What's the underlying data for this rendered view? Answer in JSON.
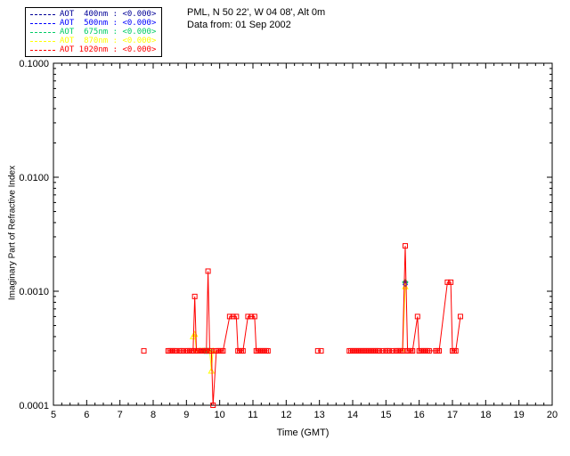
{
  "header": {
    "site_line": "PML, N 50 22', W 04 08', Alt 0m",
    "date_line": "Data from: 01 Sep 2002"
  },
  "legend": {
    "entries": [
      {
        "label": "AOT  400nm : <0.000>",
        "color": "#000096"
      },
      {
        "label": "AOT  500nm : <0.000>",
        "color": "#0000FF"
      },
      {
        "label": "AOT  675nm : <0.000>",
        "color": "#00CC66"
      },
      {
        "label": "AOT  870nm : <0.000>",
        "color": "#FFFF00"
      },
      {
        "label": "AOT 1020nm : <0.000>",
        "color": "#FF0000"
      }
    ]
  },
  "chart_data": {
    "type": "line",
    "title": "",
    "xlabel": "Time (GMT)",
    "ylabel": "Imaginary Part of Refractive Index",
    "xlim": [
      5,
      20
    ],
    "ylim": [
      0.0001,
      0.1
    ],
    "yscale": "log",
    "grid": false,
    "legend_position": "top-left",
    "xticks": [
      5,
      6,
      7,
      8,
      9,
      10,
      11,
      12,
      13,
      14,
      15,
      16,
      17,
      18,
      19,
      20
    ],
    "ytick_labels": [
      "0.0001",
      "0.0010",
      "0.0100",
      "0.1000"
    ],
    "gap_threshold": 0.5,
    "series": [
      {
        "name": "AOT 400nm",
        "color": "#000096",
        "marker": "plus",
        "points": [
          [
            9.5,
            0.0003
          ],
          [
            9.55,
            0.0003
          ],
          [
            15.58,
            0.0012
          ]
        ]
      },
      {
        "name": "AOT 500nm",
        "color": "#0000FF",
        "marker": "asterisk",
        "points": [
          [
            9.45,
            0.0003
          ],
          [
            9.5,
            0.0003
          ],
          [
            9.55,
            0.0003
          ],
          [
            15.58,
            0.00115
          ]
        ]
      },
      {
        "name": "AOT 675nm",
        "color": "#00CC66",
        "marker": "diamond",
        "points": [
          [
            9.55,
            0.0003
          ],
          [
            9.6,
            0.0003
          ],
          [
            9.65,
            0.0003
          ],
          [
            9.7,
            0.0003
          ],
          [
            15.58,
            0.0012
          ]
        ]
      },
      {
        "name": "AOT 870nm",
        "color": "#FFFF00",
        "marker": "triangle",
        "points": [
          [
            9.2,
            0.0004
          ],
          [
            9.25,
            0.00042
          ],
          [
            9.3,
            0.0003
          ],
          [
            9.4,
            0.0003
          ],
          [
            9.5,
            0.0003
          ],
          [
            9.6,
            0.0003
          ],
          [
            9.7,
            0.0003
          ],
          [
            9.75,
            0.0002
          ],
          [
            9.8,
            0.0003
          ],
          [
            15.5,
            0.0003
          ],
          [
            15.58,
            0.0011
          ]
        ]
      },
      {
        "name": "AOT 1020nm",
        "color": "#FF0000",
        "marker": "square",
        "points": [
          [
            7.72,
            0.0003
          ],
          [
            8.45,
            0.0003
          ],
          [
            8.5,
            0.0003
          ],
          [
            8.55,
            0.0003
          ],
          [
            8.6,
            0.0003
          ],
          [
            8.65,
            0.0003
          ],
          [
            8.7,
            0.0003
          ],
          [
            8.8,
            0.0003
          ],
          [
            8.85,
            0.0003
          ],
          [
            8.9,
            0.0003
          ],
          [
            9.0,
            0.0003
          ],
          [
            9.05,
            0.0003
          ],
          [
            9.1,
            0.0003
          ],
          [
            9.15,
            0.0003
          ],
          [
            9.2,
            0.0003
          ],
          [
            9.25,
            0.0009
          ],
          [
            9.3,
            0.0003
          ],
          [
            9.35,
            0.0003
          ],
          [
            9.4,
            0.0003
          ],
          [
            9.45,
            0.0003
          ],
          [
            9.5,
            0.0003
          ],
          [
            9.55,
            0.0003
          ],
          [
            9.6,
            0.0003
          ],
          [
            9.65,
            0.0015
          ],
          [
            9.7,
            0.0003
          ],
          [
            9.75,
            0.0003
          ],
          [
            9.8,
            0.0001
          ],
          [
            9.9,
            0.0003
          ],
          [
            9.95,
            0.0003
          ],
          [
            10.0,
            0.0003
          ],
          [
            10.05,
            0.0003
          ],
          [
            10.1,
            0.0003
          ],
          [
            10.3,
            0.0006
          ],
          [
            10.4,
            0.0006
          ],
          [
            10.5,
            0.0006
          ],
          [
            10.55,
            0.0003
          ],
          [
            10.6,
            0.0003
          ],
          [
            10.65,
            0.0003
          ],
          [
            10.7,
            0.0003
          ],
          [
            10.85,
            0.0006
          ],
          [
            10.95,
            0.0006
          ],
          [
            11.05,
            0.0006
          ],
          [
            11.1,
            0.0003
          ],
          [
            11.15,
            0.0003
          ],
          [
            11.2,
            0.0003
          ],
          [
            11.25,
            0.0003
          ],
          [
            11.3,
            0.0003
          ],
          [
            11.35,
            0.0003
          ],
          [
            11.4,
            0.0003
          ],
          [
            11.45,
            0.0003
          ],
          [
            12.95,
            0.0003
          ],
          [
            13.05,
            0.0003
          ],
          [
            13.9,
            0.0003
          ],
          [
            13.95,
            0.0003
          ],
          [
            14.0,
            0.0003
          ],
          [
            14.05,
            0.0003
          ],
          [
            14.1,
            0.0003
          ],
          [
            14.15,
            0.0003
          ],
          [
            14.2,
            0.0003
          ],
          [
            14.25,
            0.0003
          ],
          [
            14.3,
            0.0003
          ],
          [
            14.35,
            0.0003
          ],
          [
            14.4,
            0.0003
          ],
          [
            14.45,
            0.0003
          ],
          [
            14.5,
            0.0003
          ],
          [
            14.55,
            0.0003
          ],
          [
            14.6,
            0.0003
          ],
          [
            14.65,
            0.0003
          ],
          [
            14.7,
            0.0003
          ],
          [
            14.75,
            0.0003
          ],
          [
            14.8,
            0.0003
          ],
          [
            14.9,
            0.0003
          ],
          [
            15.0,
            0.0003
          ],
          [
            15.05,
            0.0003
          ],
          [
            15.1,
            0.0003
          ],
          [
            15.2,
            0.0003
          ],
          [
            15.3,
            0.0003
          ],
          [
            15.35,
            0.0003
          ],
          [
            15.4,
            0.0003
          ],
          [
            15.45,
            0.0003
          ],
          [
            15.5,
            0.0003
          ],
          [
            15.58,
            0.0025
          ],
          [
            15.65,
            0.0003
          ],
          [
            15.7,
            0.0003
          ],
          [
            15.75,
            0.0003
          ],
          [
            15.8,
            0.0003
          ],
          [
            15.95,
            0.0006
          ],
          [
            16.0,
            0.0003
          ],
          [
            16.05,
            0.0003
          ],
          [
            16.1,
            0.0003
          ],
          [
            16.15,
            0.0003
          ],
          [
            16.2,
            0.0003
          ],
          [
            16.25,
            0.0003
          ],
          [
            16.3,
            0.0003
          ],
          [
            16.5,
            0.0003
          ],
          [
            16.55,
            0.0003
          ],
          [
            16.6,
            0.0003
          ],
          [
            16.85,
            0.0012
          ],
          [
            16.95,
            0.0012
          ],
          [
            17.0,
            0.0003
          ],
          [
            17.05,
            0.0003
          ],
          [
            17.1,
            0.0003
          ],
          [
            17.24,
            0.0006
          ]
        ]
      }
    ]
  }
}
